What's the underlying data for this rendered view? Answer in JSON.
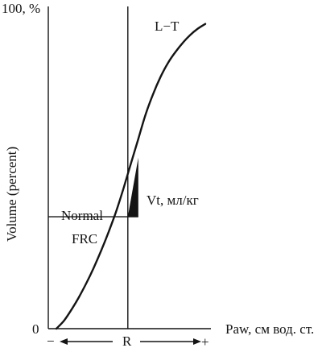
{
  "chart_data": {
    "type": "line",
    "title": "",
    "ylabel": "Volume (percent)",
    "xlabel": "Paw, см вод. ст.",
    "y_max_label": "100, %",
    "y_min_label": "0",
    "xlim": [
      0,
      100
    ],
    "ylim": [
      0,
      100
    ],
    "grid": false,
    "series": [
      {
        "name": "L−T",
        "x": [
          0,
          5,
          10,
          15,
          20,
          25,
          30,
          35,
          40,
          45,
          50,
          55,
          60,
          65,
          70,
          75,
          80,
          85,
          90,
          95,
          100
        ],
        "y": [
          0,
          2.5,
          6,
          10,
          14.5,
          19.5,
          25,
          31,
          37.5,
          45,
          53,
          61,
          69,
          75.5,
          81,
          85.5,
          89,
          92,
          94.5,
          96.5,
          98
        ]
      }
    ],
    "reference_line": {
      "x": 48,
      "label": "R"
    },
    "frc_level": {
      "y": 36,
      "label_line1": "Normal",
      "label_line2": "FRC"
    },
    "tidal_volume": {
      "x_start": 48,
      "x_end": 55,
      "y_start": 36,
      "y_end": 55,
      "label": "Vt, мл/кг"
    },
    "pressure_range": {
      "minus_label": "−",
      "plus_label": "+",
      "center_label": "R"
    }
  }
}
